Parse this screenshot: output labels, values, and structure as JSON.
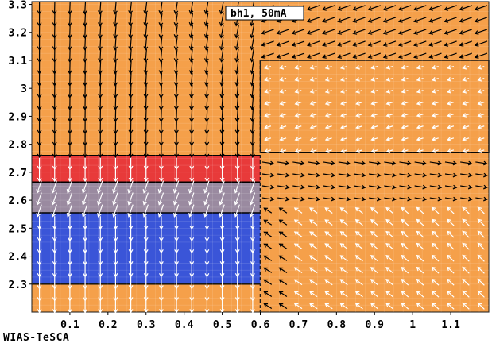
{
  "chart_data": {
    "type": "vector-field",
    "title": "bh1, 50mA",
    "xlabel": "",
    "ylabel": "",
    "xlim": [
      0.0,
      1.2
    ],
    "ylim": [
      2.2,
      3.31
    ],
    "x_ticks": [
      "0.1",
      "0.2",
      "0.3",
      "0.4",
      "0.5",
      "0.6",
      "0.7",
      "0.8",
      "0.9",
      "1",
      "1.1"
    ],
    "x_tick_values": [
      0.1,
      0.2,
      0.3,
      0.4,
      0.5,
      0.6,
      0.7,
      0.8,
      0.9,
      1.0,
      1.1
    ],
    "y_ticks": [
      "2.3",
      "2.4",
      "2.5",
      "2.6",
      "2.7",
      "2.8",
      "2.9",
      "3",
      "3.1",
      "3.2",
      "3.3"
    ],
    "y_tick_values": [
      2.3,
      2.4,
      2.5,
      2.6,
      2.7,
      2.8,
      2.9,
      3.0,
      3.1,
      3.2,
      3.3
    ],
    "regions": [
      {
        "name": "background",
        "color": "#f5a04a",
        "x": [
          0.0,
          1.2
        ],
        "y": [
          2.2,
          3.31
        ]
      },
      {
        "name": "red layer",
        "color": "#e83a3a",
        "x": [
          0.0,
          0.6
        ],
        "y": [
          2.665,
          2.76
        ]
      },
      {
        "name": "grey layer",
        "color": "#9a8aa0",
        "x": [
          0.0,
          0.6
        ],
        "y": [
          2.555,
          2.665
        ]
      },
      {
        "name": "blue layer",
        "color": "#3a55d8",
        "x": [
          0.0,
          0.6
        ],
        "y": [
          2.3,
          2.555
        ]
      },
      {
        "name": "outlined rectangle",
        "color": "#f5a04a",
        "x": [
          0.6,
          1.2
        ],
        "y": [
          2.77,
          3.1
        ],
        "outline": true
      }
    ],
    "grid": true
  },
  "footer": "WIAS-TeSCA"
}
